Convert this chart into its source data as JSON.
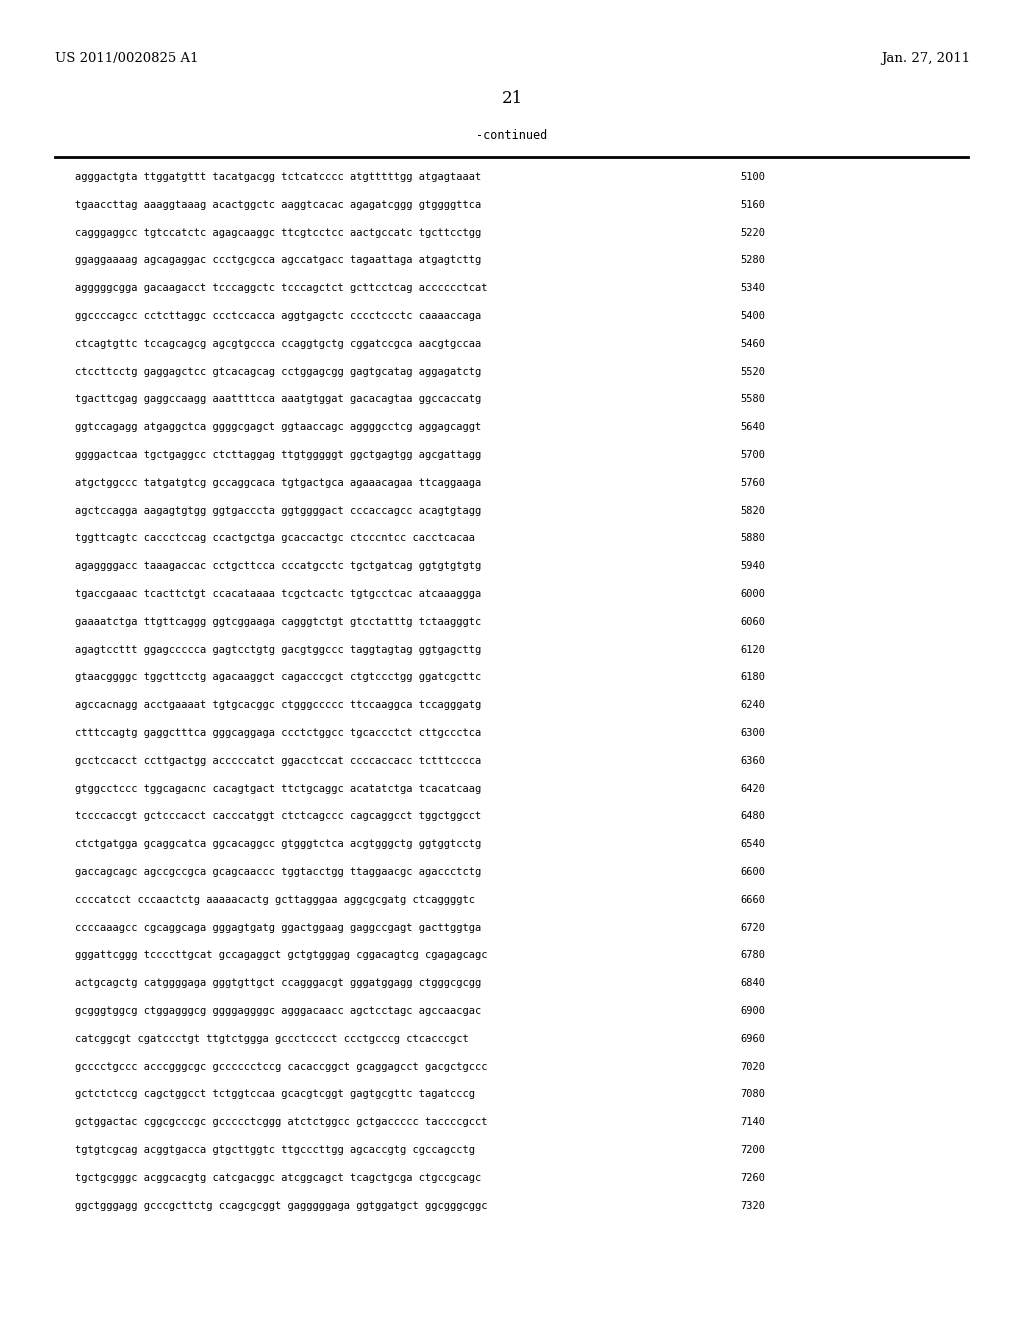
{
  "patent_number": "US 2011/0020825 A1",
  "date": "Jan. 27, 2011",
  "page_number": "21",
  "continued_label": "-continued",
  "background_color": "#ffffff",
  "text_color": "#000000",
  "mono_font_size": 7.5,
  "header_font_size": 9.5,
  "page_num_font_size": 12,
  "sequences": [
    [
      "agggactgta",
      "ttggatgttt",
      "tacatgacgg",
      "tctcatcccc",
      "atgtttttgg",
      "atgagtaaat",
      "5100"
    ],
    [
      "tgaaccttag",
      "aaaggtaaag",
      "acactggctc",
      "aaggtcacac",
      "agagatcggg",
      "gtggggttca",
      "5160"
    ],
    [
      "cagggaggcc",
      "tgtccatctc",
      "agagcaaggc",
      "ttcgtcctcc",
      "aactgccatc",
      "tgcttcctgg",
      "5220"
    ],
    [
      "ggaggaaaag",
      "agcagaggac",
      "ccctgcgcca",
      "agccatgacc",
      "tagaattaga",
      "atgagtcttg",
      "5280"
    ],
    [
      "agggggcgga",
      "gacaagacct",
      "tcccaggctc",
      "tcccagctct",
      "gcttcctcag",
      "acccccctcat",
      "5340"
    ],
    [
      "ggccccagcc",
      "cctcttaggc",
      "ccctccacca",
      "aggtgagctc",
      "cccctccctc",
      "caaaaccaga",
      "5400"
    ],
    [
      "ctcagtgttc",
      "tccagcagcg",
      "agcgtgccca",
      "ccaggtgctg",
      "cggatccgca",
      "aacgtgccaa",
      "5460"
    ],
    [
      "ctccttcctg",
      "gaggagctcc",
      "gtcacagcag",
      "cctggagcgg",
      "gagtgcatag",
      "aggagatctg",
      "5520"
    ],
    [
      "tgacttcgag",
      "gaggccaagg",
      "aaattttcca",
      "aaatgtggat",
      "gacacagtaa",
      "ggccaccatg",
      "5580"
    ],
    [
      "ggtccagagg",
      "atgaggctca",
      "ggggcgagct",
      "ggtaaccagc",
      "aggggcctcg",
      "aggagcaggt",
      "5640"
    ],
    [
      "ggggactcaa",
      "tgctgaggcc",
      "ctcttaggag",
      "ttgtgggggt",
      "ggctgagtgg",
      "agcgattagg",
      "5700"
    ],
    [
      "atgctggccc",
      "tatgatgtcg",
      "gccaggcaca",
      "tgtgactgca",
      "agaaacagaa",
      "ttcaggaaga",
      "5760"
    ],
    [
      "agctccagga",
      "aagagtgtgg",
      "ggtgacccta",
      "ggtggggact",
      "cccaccagcc",
      "acagtgtagg",
      "5820"
    ],
    [
      "tggttcagtc",
      "caccctccag",
      "ccactgctga",
      "gcaccactgc",
      "ctcccntcc",
      "cacctcacaa",
      "5880"
    ],
    [
      "agaggggacc",
      "taaagaccac",
      "cctgcttcca",
      "cccatgcctc",
      "tgctgatcag",
      "ggtgtgtgtg",
      "5940"
    ],
    [
      "tgaccgaaac",
      "tcacttctgt",
      "ccacataaaa",
      "tcgctcactc",
      "tgtgcctcac",
      "atcaaaggga",
      "6000"
    ],
    [
      "gaaaatctga",
      "ttgttcaggg",
      "ggtcggaaga",
      "cagggtctgt",
      "gtcctatttg",
      "tctaagggtc",
      "6060"
    ],
    [
      "agagtccttt",
      "ggagccccca",
      "gagtcctgtg",
      "gacgtggccc",
      "taggtagtag",
      "ggtgagcttg",
      "6120"
    ],
    [
      "gtaacggggc",
      "tggcttcctg",
      "agacaaggct",
      "cagacccgct",
      "ctgtccctgg",
      "ggatcgcttc",
      "6180"
    ],
    [
      "agccacnagg",
      "acctgaaaat",
      "tgtgcacggc",
      "ctgggccccc",
      "ttccaaggca",
      "tccagggatg",
      "6240"
    ],
    [
      "ctttccagtg",
      "gaggctttca",
      "gggcaggaga",
      "ccctctggcc",
      "tgcaccctct",
      "cttgccctca",
      "6300"
    ],
    [
      "gcctccacct",
      "ccttgactgg",
      "acccccatct",
      "ggacctccat",
      "ccccaccacc",
      "tctttcccca",
      "6360"
    ],
    [
      "gtggcctccc",
      "tggcagacnc",
      "cacagtgact",
      "ttctgcaggc",
      "acatatctga",
      "tcacatcaag",
      "6420"
    ],
    [
      "tccccaccgt",
      "gctcccacct",
      "cacccatggt",
      "ctctcagccc",
      "cagcaggcct",
      "tggctggcct",
      "6480"
    ],
    [
      "ctctgatgga",
      "gcaggcatca",
      "ggcacaggcc",
      "gtgggtctca",
      "acgtgggctg",
      "ggtggtcctg",
      "6540"
    ],
    [
      "gaccagcagc",
      "agccgccgca",
      "gcagcaaccc",
      "tggtacctgg",
      "ttaggaacgc",
      "agaccctctg",
      "6600"
    ],
    [
      "ccccatcct",
      "cccaactctg",
      "aaaaacactg",
      "gcttagggaa",
      "aggcgcgatg",
      "ctcaggggtc",
      "6660"
    ],
    [
      "ccccaaagcc",
      "cgcaggcaga",
      "gggagtgatg",
      "ggactggaag",
      "gaggccgagt",
      "gacttggtga",
      "6720"
    ],
    [
      "gggattcggg",
      "tccccttgcat",
      "gccagaggct",
      "gctgtgggag",
      "cggacagtcg",
      "cgagagcagc",
      "6780"
    ],
    [
      "actgcagctg",
      "catggggaga",
      "gggtgttgct",
      "ccagggacgt",
      "gggatggagg",
      "ctgggcgcgg",
      "6840"
    ],
    [
      "gcgggtggcg",
      "ctggagggcg",
      "ggggaggggc",
      "agggacaacc",
      "agctcctagc",
      "agccaacgac",
      "6900"
    ],
    [
      "catcggcgt",
      "cgatccctgt",
      "ttgtctggga",
      "gccctcccct",
      "ccctgcccg",
      "ctcacccgct",
      "6960"
    ],
    [
      "gcccctgccc",
      "acccgggcgc",
      "gcccccctccg",
      "cacaccggct",
      "gcaggagcct",
      "gacgctgccc",
      "7020"
    ],
    [
      "gctctctccg",
      "cagctggcct",
      "tctggtccaa",
      "gcacgtcggt",
      "gagtgcgttc",
      "tagatcccg",
      "7080"
    ],
    [
      "gctggactac",
      "cggcgcccgc",
      "gccccctcggg",
      "atctctggcc",
      "gctgaccccc",
      "taccccgcct",
      "7140"
    ],
    [
      "tgtgtcgcag",
      "acggtgacca",
      "gtgcttggtc",
      "ttgcccttgg",
      "agcaccgtg",
      "cgccagcctg",
      "7200"
    ],
    [
      "tgctgcgggc",
      "acggcacgtg",
      "catcgacggc",
      "atcggcagct",
      "tcagctgcga",
      "ctgccgcagc",
      "7260"
    ],
    [
      "ggctgggagg",
      "gcccgcttctg",
      "ccagcgcggt",
      "gagggggaga",
      "ggtggatgct",
      "ggcgggcggc",
      "7320"
    ]
  ]
}
